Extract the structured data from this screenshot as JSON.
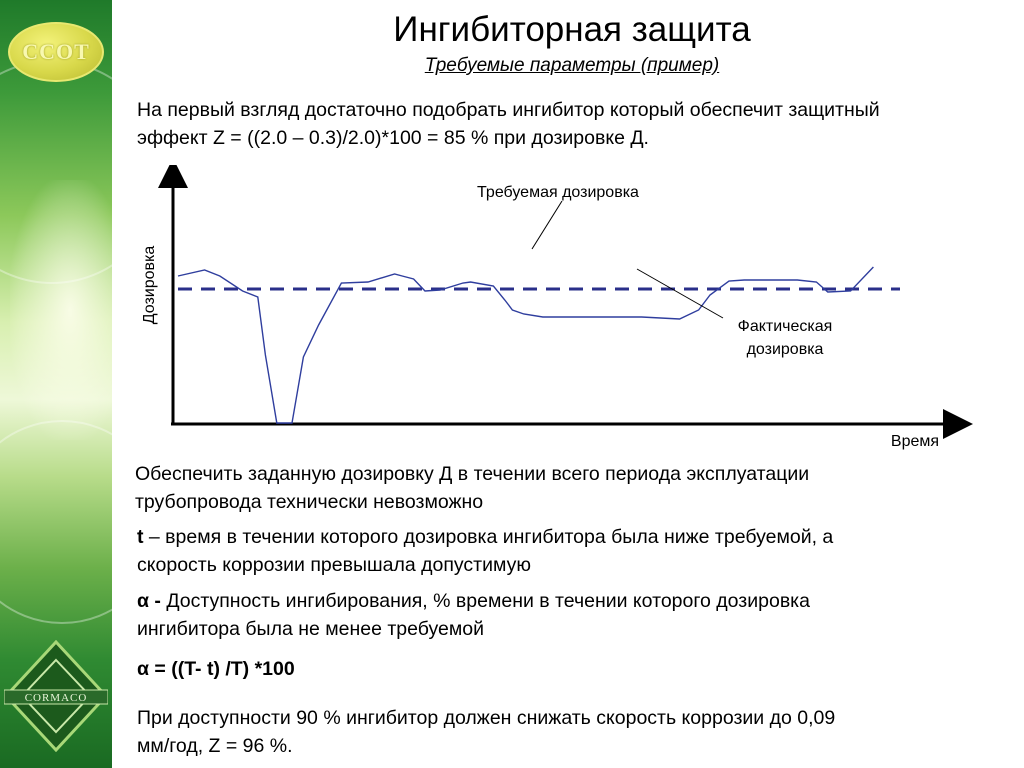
{
  "header": {
    "title": "Ингибиторная защита",
    "subtitle": "Требуемые параметры (пример)"
  },
  "logos": {
    "top_text": "ССОТ",
    "bottom_text": "CORMACO"
  },
  "intro": {
    "line1": "На первый взгляд достаточно подобрать ингибитор который обеспечит защитный",
    "line2": "эффект Z = ((2.0 – 0.3)/2.0)*100 = 85 % при дозировке Д."
  },
  "chart_data": {
    "type": "line",
    "ylabel": "Дозировка",
    "xlabel": "Время",
    "annotations": {
      "required": "Требуемая дозировка",
      "actual_line1": "Фактическая",
      "actual_line2": "дозировка"
    },
    "required_level": 0.67,
    "ylim": [
      0,
      1
    ],
    "xlim": [
      0,
      1
    ],
    "series": [
      {
        "role": "actual",
        "x": [
          0.0,
          0.035,
          0.055,
          0.085,
          0.105,
          0.115,
          0.13,
          0.15,
          0.165,
          0.185,
          0.215,
          0.25,
          0.285,
          0.295,
          0.31,
          0.325,
          0.345,
          0.375,
          0.385,
          0.415,
          0.43,
          0.44,
          0.455,
          0.48,
          0.52,
          0.61,
          0.66,
          0.685,
          0.7,
          0.725,
          0.745,
          0.79,
          0.8,
          0.815,
          0.84,
          0.855,
          0.885,
          0.915
        ],
        "y": [
          0.735,
          0.765,
          0.735,
          0.66,
          0.63,
          0.34,
          0.0,
          0.0,
          0.33,
          0.49,
          0.7,
          0.705,
          0.745,
          0.735,
          0.72,
          0.66,
          0.665,
          0.7,
          0.705,
          0.685,
          0.615,
          0.565,
          0.545,
          0.53,
          0.53,
          0.53,
          0.52,
          0.565,
          0.64,
          0.71,
          0.715,
          0.715,
          0.715,
          0.715,
          0.705,
          0.655,
          0.66,
          0.78
        ]
      }
    ]
  },
  "body": {
    "p1_line1": "Обеспечить заданную дозировку Д в течении всего периода эксплуатации",
    "p1_line2": "трубопровода технически невозможно",
    "p2_term": "t",
    "p2_line1": " – время в течении которого дозировка ингибитора была ниже требуемой, а",
    "p2_line2": "скорость коррозии превышала допустимую",
    "p3_term": "α -",
    "p3_line1": " Доступность ингибирования, % времени в течении которого дозировка",
    "p3_line2": "ингибитора была не менее требуемой",
    "formula": "α = ((T- t) /T) *100",
    "p5_line1": "При доступности 90 % ингибитор должен снижать скорость коррозии до 0,09",
    "p5_line2": "мм/год, Z = 96 %."
  },
  "colors": {
    "line": "#2f3e9e",
    "dashed": "#2a2f8a",
    "sidebar_dark": "#1f7a2a",
    "sidebar_light": "#eef8d8",
    "logo_yellow": "#d8d84a"
  }
}
